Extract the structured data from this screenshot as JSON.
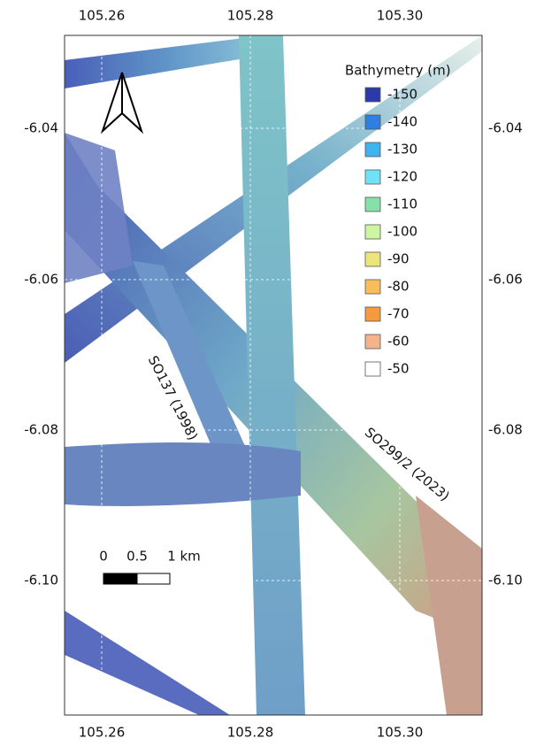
{
  "map": {
    "lon_ticks": [
      "105.26",
      "105.28",
      "105.30"
    ],
    "lat_ticks": [
      "-6.04",
      "-6.06",
      "-6.08",
      "-6.10"
    ],
    "legend": {
      "title": "Bathymetry (m)",
      "items": [
        {
          "label": "-150",
          "color": "#2b3aa8"
        },
        {
          "label": "-140",
          "color": "#2f7fe2"
        },
        {
          "label": "-130",
          "color": "#3db4ee"
        },
        {
          "label": "-120",
          "color": "#70e2f6"
        },
        {
          "label": "-110",
          "color": "#87e0a9"
        },
        {
          "label": "-100",
          "color": "#cdf6a2"
        },
        {
          "label": "-90",
          "color": "#ece67a"
        },
        {
          "label": "-80",
          "color": "#f8bd5a"
        },
        {
          "label": "-70",
          "color": "#f7993e"
        },
        {
          "label": "-60",
          "color": "#f3b48c"
        },
        {
          "label": "-50",
          "color": "#ffffff"
        }
      ]
    },
    "track_labels": [
      "SO137 (1998)",
      "SO299/2 (2023)"
    ],
    "scale_bar": [
      "0",
      "0.5",
      "1 km"
    ]
  }
}
